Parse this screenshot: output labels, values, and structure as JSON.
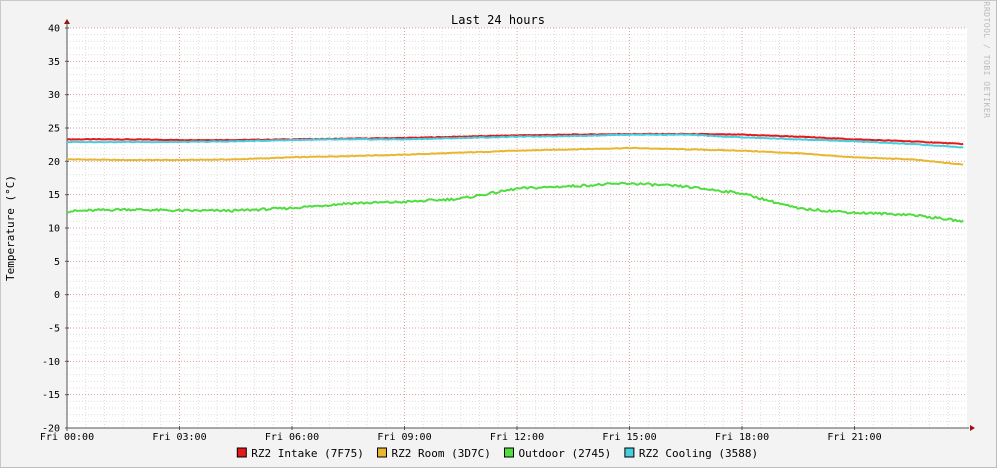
{
  "chart_data": {
    "type": "line",
    "title": "Last 24 hours",
    "ylabel": "Temperature (°C)",
    "xlabel": "",
    "watermark": "RRDTOOL / TOBI OETIKER",
    "ylim": [
      -20,
      40
    ],
    "y_ticks": [
      "40",
      "35",
      "30",
      "25",
      "20",
      "15",
      "10",
      "5",
      "0",
      "-5",
      "-10",
      "-15",
      "-20"
    ],
    "x_ticks": [
      "Fri 00:00",
      "Fri 03:00",
      "Fri 06:00",
      "Fri 09:00",
      "Fri 12:00",
      "Fri 15:00",
      "Fri 18:00",
      "Fri 21:00"
    ],
    "x_hours": [
      0,
      1.5,
      3,
      4.5,
      6,
      7.5,
      9,
      10.5,
      12,
      13.5,
      15,
      16.5,
      18,
      19.5,
      21,
      22.5,
      23.9
    ],
    "series": [
      {
        "name": "RZ2 Intake (7F75)",
        "color": "#e31a1c",
        "values": [
          23.3,
          23.3,
          23.2,
          23.2,
          23.3,
          23.4,
          23.5,
          23.7,
          23.9,
          24.0,
          24.1,
          24.1,
          24.0,
          23.7,
          23.3,
          23.0,
          22.6
        ]
      },
      {
        "name": "RZ2 Room (3D7C)",
        "color": "#e8b630",
        "values": [
          20.3,
          20.2,
          20.2,
          20.3,
          20.6,
          20.8,
          21.0,
          21.3,
          21.6,
          21.8,
          22.0,
          21.8,
          21.6,
          21.2,
          20.6,
          20.3,
          19.5
        ]
      },
      {
        "name": "Outdoor (2745)",
        "color": "#4fdd40",
        "values": [
          12.5,
          12.8,
          12.6,
          12.6,
          13.0,
          13.7,
          13.9,
          14.4,
          15.9,
          16.3,
          16.7,
          16.2,
          15.2,
          12.9,
          12.3,
          12.0,
          11.0
        ]
      },
      {
        "name": "RZ2 Cooling (3588)",
        "color": "#45cde0",
        "values": [
          22.9,
          22.9,
          22.9,
          23.0,
          23.2,
          23.3,
          23.3,
          23.5,
          23.7,
          23.8,
          24.0,
          24.0,
          23.6,
          23.3,
          23.0,
          22.6,
          22.1
        ]
      }
    ],
    "grid": true,
    "legend": "bottom"
  }
}
